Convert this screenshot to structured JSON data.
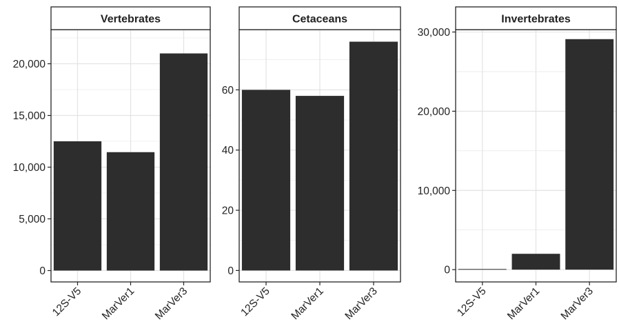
{
  "chart_data": [
    {
      "type": "bar",
      "title": "Vertebrates",
      "categories": [
        "12S-V5",
        "MarVer1",
        "MarVer3"
      ],
      "values": [
        12500,
        11450,
        21000
      ],
      "ylim": [
        -1100,
        23300
      ],
      "yticks": [
        0,
        5000,
        10000,
        15000,
        20000
      ],
      "ytick_labels": [
        "0",
        "5,000",
        "10,000",
        "15,000",
        "20,000"
      ],
      "xlabel": "",
      "ylabel": "",
      "grid": true
    },
    {
      "type": "bar",
      "title": "Cetaceans",
      "categories": [
        "12S-V5",
        "MarVer1",
        "MarVer3"
      ],
      "values": [
        60,
        58,
        76
      ],
      "ylim": [
        -3.8,
        80
      ],
      "yticks": [
        0,
        20,
        40,
        60
      ],
      "ytick_labels": [
        "0",
        "20",
        "40",
        "60"
      ],
      "xlabel": "",
      "ylabel": "",
      "grid": true
    },
    {
      "type": "bar",
      "title": "Invertebrates",
      "categories": [
        "12S-V5",
        "MarVer1",
        "MarVer3"
      ],
      "values": [
        80,
        2000,
        29100
      ],
      "ylim": [
        -1550,
        30300
      ],
      "yticks": [
        0,
        10000,
        20000,
        30000
      ],
      "ytick_labels": [
        "0",
        "10,000",
        "20,000",
        "30,000"
      ],
      "xlabel": "",
      "ylabel": "",
      "grid": true
    }
  ],
  "colors": {
    "bar": "#2d2d2d",
    "grid": "#e3e3e3",
    "border": "#222222",
    "strip_fill": "#ffffff",
    "text": "#222222"
  }
}
